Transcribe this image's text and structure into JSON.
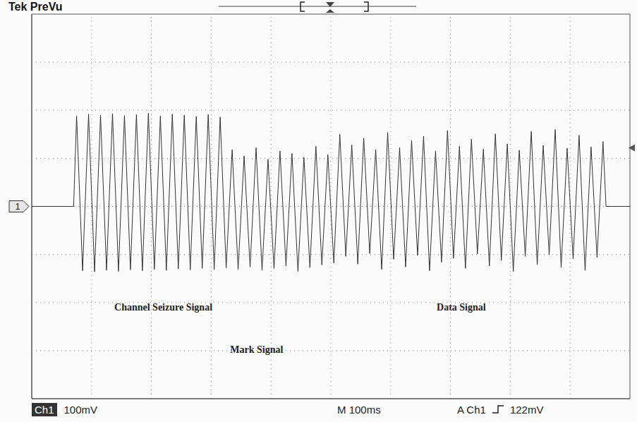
{
  "chart_data": {
    "type": "line",
    "title": "Tek PreVu",
    "x": [
      0,
      70,
      75,
      85,
      95,
      105,
      115,
      125,
      135,
      145,
      155,
      165,
      175,
      185,
      195,
      205,
      215,
      225,
      235,
      245,
      255,
      265,
      275,
      285,
      295,
      305,
      315,
      325,
      335,
      345,
      355,
      365,
      375,
      385,
      395,
      405,
      415,
      425,
      435,
      445,
      455,
      465,
      475,
      485,
      495,
      505,
      515,
      525,
      535,
      545,
      555,
      565,
      575,
      585,
      595,
      605,
      615,
      625,
      635,
      645,
      655,
      665,
      675,
      685,
      695,
      705,
      715,
      725,
      735,
      745,
      755,
      765,
      775,
      785,
      795,
      805,
      815,
      825,
      835,
      845,
      855,
      865,
      875,
      885,
      895,
      905,
      915,
      925,
      935,
      945,
      955,
      960,
      1000
    ],
    "values": [
      0,
      0,
      188,
      -134,
      192,
      -136,
      190,
      -133,
      193,
      -135,
      189,
      -132,
      191,
      -134,
      194,
      -131,
      188,
      -133,
      192,
      -130,
      190,
      -132,
      187,
      -129,
      191,
      -131,
      186,
      -128,
      118,
      -131,
      105,
      -126,
      122,
      -133,
      98,
      -129,
      115,
      -124,
      110,
      -135,
      102,
      -127,
      125,
      -122,
      108,
      -118,
      150,
      -104,
      128,
      -120,
      142,
      -98,
      118,
      -131,
      154,
      -110,
      122,
      -126,
      137,
      -102,
      146,
      -134,
      115,
      -116,
      158,
      -108,
      125,
      -129,
      140,
      -99,
      119,
      -124,
      151,
      -112,
      130,
      -135,
      117,
      -104,
      156,
      -121,
      127,
      -100,
      160,
      -127,
      121,
      -109,
      148,
      -133,
      124,
      -106,
      135,
      0,
      0
    ],
    "color": "#333333",
    "xlim": [
      0,
      1000
    ],
    "xticks": [
      0,
      100,
      200,
      300,
      400,
      500,
      600,
      700,
      800,
      900,
      1000
    ],
    "ylim": [
      -400,
      400
    ],
    "yticks": [
      -400,
      -300,
      -200,
      -100,
      0,
      100,
      200,
      300,
      400
    ],
    "grid": true,
    "tick_labels": false,
    "annotations": [
      {
        "text": "Channel Seizure Signal",
        "x": 220,
        "y": -212
      },
      {
        "text": "Mark Signal",
        "x": 376,
        "y": -300
      },
      {
        "text": "Data Signal",
        "x": 718,
        "y": -212
      }
    ],
    "ground_marker": {
      "label": "1",
      "value": 0
    },
    "status": {
      "channel": "Ch1",
      "scale": "100mV",
      "timebase": "M 100ms"
    },
    "trigger": {
      "source": "A Ch1",
      "level": 122,
      "level_label": "122mV"
    }
  }
}
